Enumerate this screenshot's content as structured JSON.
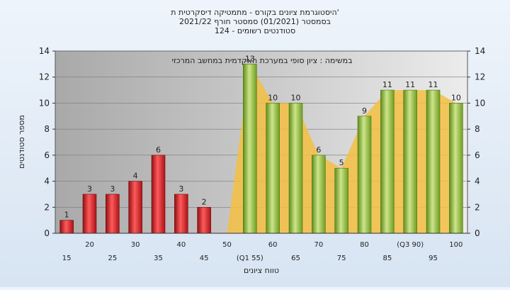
{
  "chart_data": {
    "type": "bar",
    "title_lines": [
      "היסטוגרמת ציונים בקורס - מתמטיקה דיסקרטית ת'",
      "בסמסטר  (01/2021)  סמסטר חורף 2021/22",
      "סטודנטים רשומים - 124"
    ],
    "inner_title": "במשימה : ציון סופי במערכת האקדמית במחשב המרכזי",
    "xlabel": "טווח ציונים",
    "ylabel": "מספר סטודנטים",
    "ylim": [
      0,
      14
    ],
    "yticks": [
      "0",
      "2",
      "4",
      "6",
      "8",
      "10",
      "12",
      "14"
    ],
    "grid": true,
    "categories": [
      "15",
      "20",
      "25",
      "30",
      "35",
      "40",
      "45",
      "50",
      "(Q1 55)",
      "60",
      "65",
      "70",
      "75",
      "80",
      "85",
      "(Q3 90)",
      "95",
      "100"
    ],
    "values": [
      1,
      3,
      3,
      4,
      6,
      3,
      2,
      0,
      13,
      10,
      10,
      6,
      5,
      9,
      11,
      11,
      11,
      10
    ],
    "value_labels": [
      "1",
      "3",
      "3",
      "4",
      "6",
      "3",
      "2",
      "",
      "13",
      "10",
      "10",
      "6",
      "5",
      "9",
      "11",
      "11",
      "11",
      "10"
    ],
    "colors": {
      "fail_bar": "#d8262c",
      "pass_bar": "#8fbc3a",
      "area_fill": "#f5c042",
      "plot_bg": "#b8b8b8",
      "plot_bg_light": "#e4e4e4"
    }
  }
}
